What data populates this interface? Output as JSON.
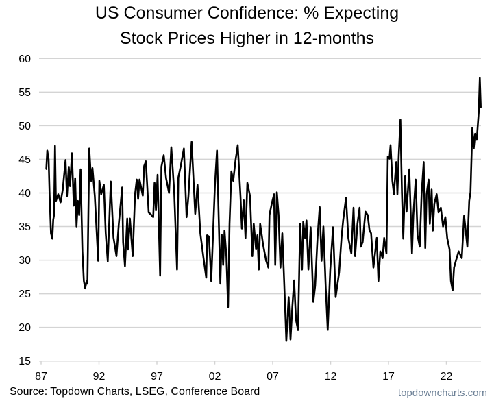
{
  "chart_data": {
    "type": "line",
    "title_line1": "US Consumer Confidence: % Expecting",
    "title_line2": "Stock Prices Higher in 12-months",
    "xlabel": "",
    "ylabel": "",
    "ylim": [
      15,
      60
    ],
    "xlim": [
      1987,
      2025
    ],
    "grid": true,
    "y_ticks": [
      15,
      20,
      25,
      30,
      35,
      40,
      45,
      50,
      55,
      60
    ],
    "x_ticks": [
      {
        "year": 1987,
        "label": "87"
      },
      {
        "year": 1992,
        "label": "92"
      },
      {
        "year": 1997,
        "label": "97"
      },
      {
        "year": 2002,
        "label": "02"
      },
      {
        "year": 2007,
        "label": "07"
      },
      {
        "year": 2012,
        "label": "12"
      },
      {
        "year": 2017,
        "label": "17"
      },
      {
        "year": 2022,
        "label": "22"
      }
    ],
    "series": [
      {
        "name": "% Expecting Stock Prices Higher",
        "color": "#000000",
        "points": [
          [
            1987.45,
            43.5
          ],
          [
            1987.53,
            46.3
          ],
          [
            1987.65,
            45
          ],
          [
            1987.73,
            40.1
          ],
          [
            1987.85,
            34
          ],
          [
            1987.97,
            33.2
          ],
          [
            1988.05,
            36
          ],
          [
            1988.12,
            36.7
          ],
          [
            1988.2,
            47
          ],
          [
            1988.28,
            38.8
          ],
          [
            1988.48,
            39.8
          ],
          [
            1988.68,
            38.6
          ],
          [
            1988.87,
            40.5
          ],
          [
            1989.11,
            44.9
          ],
          [
            1989.23,
            39.5
          ],
          [
            1989.39,
            43.9
          ],
          [
            1989.5,
            41
          ],
          [
            1989.66,
            45.9
          ],
          [
            1989.82,
            38.1
          ],
          [
            1989.94,
            42.2
          ],
          [
            1990.06,
            35
          ],
          [
            1990.18,
            38.8
          ],
          [
            1990.29,
            36.7
          ],
          [
            1990.41,
            43.5
          ],
          [
            1990.57,
            31.3
          ],
          [
            1990.69,
            26.9
          ],
          [
            1990.81,
            25.8
          ],
          [
            1990.93,
            26.9
          ],
          [
            1991.0,
            26.5
          ],
          [
            1991.16,
            46.6
          ],
          [
            1991.32,
            41.8
          ],
          [
            1991.44,
            43.7
          ],
          [
            1991.64,
            39.5
          ],
          [
            1991.93,
            29.9
          ],
          [
            1992.03,
            41.8
          ],
          [
            1992.19,
            39.8
          ],
          [
            1992.42,
            41.2
          ],
          [
            1992.58,
            34
          ],
          [
            1992.76,
            29.8
          ],
          [
            1993.02,
            41.7
          ],
          [
            1993.25,
            33.4
          ],
          [
            1993.51,
            30.6
          ],
          [
            1993.71,
            35.4
          ],
          [
            1994.0,
            40.8
          ],
          [
            1994.08,
            32.7
          ],
          [
            1994.24,
            29.1
          ],
          [
            1994.44,
            36.2
          ],
          [
            1994.51,
            31.6
          ],
          [
            1994.67,
            36.2
          ],
          [
            1994.91,
            30.6
          ],
          [
            1995.11,
            39.8
          ],
          [
            1995.26,
            42
          ],
          [
            1995.38,
            39.1
          ],
          [
            1995.5,
            42
          ],
          [
            1995.78,
            39.6
          ],
          [
            1995.9,
            44
          ],
          [
            1996.05,
            44.7
          ],
          [
            1996.29,
            37.1
          ],
          [
            1996.53,
            36.7
          ],
          [
            1996.68,
            36.4
          ],
          [
            1996.8,
            41.5
          ],
          [
            1996.92,
            37.4
          ],
          [
            1997.06,
            42.7
          ],
          [
            1997.28,
            27.7
          ],
          [
            1997.39,
            43.9
          ],
          [
            1997.59,
            45.6
          ],
          [
            1997.79,
            42.2
          ],
          [
            1998.05,
            40
          ],
          [
            1998.24,
            46.8
          ],
          [
            1998.5,
            40.1
          ],
          [
            1998.74,
            28.6
          ],
          [
            1998.85,
            42.3
          ],
          [
            1999.05,
            43.9
          ],
          [
            1999.33,
            46.6
          ],
          [
            1999.56,
            36.4
          ],
          [
            1999.72,
            39.5
          ],
          [
            2000.0,
            47.6
          ],
          [
            2000.31,
            36.9
          ],
          [
            2000.51,
            41.2
          ],
          [
            2000.75,
            34
          ],
          [
            2001.02,
            30.4
          ],
          [
            2001.26,
            27.4
          ],
          [
            2001.34,
            33.7
          ],
          [
            2001.5,
            33.5
          ],
          [
            2001.69,
            26.9
          ],
          [
            2001.85,
            34
          ],
          [
            2002.01,
            41.2
          ],
          [
            2002.19,
            46.3
          ],
          [
            2002.48,
            26.5
          ],
          [
            2002.6,
            33.8
          ],
          [
            2002.72,
            29.3
          ],
          [
            2002.84,
            34.4
          ],
          [
            2003.0,
            30.6
          ],
          [
            2003.15,
            23
          ],
          [
            2003.27,
            35.4
          ],
          [
            2003.43,
            43.2
          ],
          [
            2003.59,
            41.8
          ],
          [
            2003.79,
            44.9
          ],
          [
            2003.98,
            47.1
          ],
          [
            2004.22,
            39.5
          ],
          [
            2004.34,
            34.7
          ],
          [
            2004.5,
            38.9
          ],
          [
            2004.65,
            33.3
          ],
          [
            2004.81,
            41.5
          ],
          [
            2005.05,
            39.5
          ],
          [
            2005.24,
            30.6
          ],
          [
            2005.36,
            35.4
          ],
          [
            2005.56,
            31.6
          ],
          [
            2005.68,
            33.7
          ],
          [
            2005.8,
            28.6
          ],
          [
            2005.92,
            35.4
          ],
          [
            2006.17,
            32.3
          ],
          [
            2006.43,
            29.9
          ],
          [
            2006.63,
            28.9
          ],
          [
            2006.72,
            36.7
          ],
          [
            2006.92,
            38.4
          ],
          [
            2007.12,
            39.8
          ],
          [
            2007.22,
            29.3
          ],
          [
            2007.36,
            40.1
          ],
          [
            2007.51,
            36.7
          ],
          [
            2007.67,
            28.9
          ],
          [
            2007.83,
            34
          ],
          [
            2007.99,
            26.9
          ],
          [
            2008.18,
            18
          ],
          [
            2008.38,
            24.5
          ],
          [
            2008.54,
            18.2
          ],
          [
            2008.7,
            23.1
          ],
          [
            2008.85,
            27
          ],
          [
            2009.01,
            21.1
          ],
          [
            2009.19,
            19.6
          ],
          [
            2009.37,
            35.4
          ],
          [
            2009.53,
            28.6
          ],
          [
            2009.64,
            35.7
          ],
          [
            2009.8,
            33.3
          ],
          [
            2009.92,
            35.9
          ],
          [
            2010.08,
            28.6
          ],
          [
            2010.28,
            34.9
          ],
          [
            2010.51,
            23.8
          ],
          [
            2010.67,
            26.2
          ],
          [
            2010.87,
            33.3
          ],
          [
            2011.06,
            37.9
          ],
          [
            2011.22,
            29.9
          ],
          [
            2011.38,
            35
          ],
          [
            2011.58,
            25.9
          ],
          [
            2011.75,
            19.6
          ],
          [
            2011.97,
            28.6
          ],
          [
            2012.21,
            34.9
          ],
          [
            2012.44,
            24.5
          ],
          [
            2012.74,
            28.2
          ],
          [
            2012.94,
            33.3
          ],
          [
            2013.08,
            35.9
          ],
          [
            2013.33,
            39.3
          ],
          [
            2013.53,
            33.3
          ],
          [
            2013.79,
            31
          ],
          [
            2013.98,
            37.8
          ],
          [
            2014.12,
            30.6
          ],
          [
            2014.32,
            35.4
          ],
          [
            2014.5,
            37.8
          ],
          [
            2014.61,
            32
          ],
          [
            2014.77,
            32.7
          ],
          [
            2015.01,
            37.2
          ],
          [
            2015.21,
            36.7
          ],
          [
            2015.36,
            34.4
          ],
          [
            2015.5,
            34
          ],
          [
            2015.7,
            28.9
          ],
          [
            2015.99,
            33.3
          ],
          [
            2016.13,
            26.9
          ],
          [
            2016.29,
            31.3
          ],
          [
            2016.49,
            30.3
          ],
          [
            2016.63,
            33.3
          ],
          [
            2016.82,
            31
          ],
          [
            2016.94,
            45.4
          ],
          [
            2017.08,
            45.1
          ],
          [
            2017.18,
            47.1
          ],
          [
            2017.34,
            41.8
          ],
          [
            2017.47,
            39.8
          ],
          [
            2017.67,
            44.6
          ],
          [
            2017.77,
            39.8
          ],
          [
            2017.89,
            45.6
          ],
          [
            2018.03,
            50.9
          ],
          [
            2018.16,
            40.1
          ],
          [
            2018.28,
            33.2
          ],
          [
            2018.44,
            42.5
          ],
          [
            2018.56,
            37.2
          ],
          [
            2018.8,
            43.5
          ],
          [
            2019.03,
            31
          ],
          [
            2019.15,
            36.7
          ],
          [
            2019.35,
            42
          ],
          [
            2019.51,
            33.7
          ],
          [
            2019.7,
            32
          ],
          [
            2019.86,
            39.8
          ],
          [
            2020.04,
            44.6
          ],
          [
            2020.18,
            31.8
          ],
          [
            2020.29,
            39.8
          ],
          [
            2020.47,
            42
          ],
          [
            2020.57,
            35.4
          ],
          [
            2020.73,
            40.5
          ],
          [
            2020.83,
            34.4
          ],
          [
            2020.96,
            38.4
          ],
          [
            2021.16,
            39.8
          ],
          [
            2021.32,
            37.1
          ],
          [
            2021.52,
            37.8
          ],
          [
            2021.71,
            35
          ],
          [
            2021.91,
            36.4
          ],
          [
            2022.07,
            33.3
          ],
          [
            2022.27,
            31.6
          ],
          [
            2022.39,
            26.9
          ],
          [
            2022.54,
            25.5
          ],
          [
            2022.66,
            28.9
          ],
          [
            2022.82,
            29.9
          ],
          [
            2023.06,
            31.3
          ],
          [
            2023.33,
            30.3
          ],
          [
            2023.53,
            36.6
          ],
          [
            2023.81,
            32
          ],
          [
            2023.97,
            38.8
          ],
          [
            2024.08,
            40.1
          ],
          [
            2024.24,
            49.7
          ],
          [
            2024.36,
            46.6
          ],
          [
            2024.48,
            48.8
          ],
          [
            2024.63,
            48
          ],
          [
            2024.79,
            52
          ],
          [
            2024.89,
            57.1
          ],
          [
            2024.97,
            52.7
          ]
        ]
      }
    ]
  },
  "footer": {
    "source": "Source: Topdown Charts, LSEG, Conference Board",
    "watermark": "topdowncharts.com"
  }
}
